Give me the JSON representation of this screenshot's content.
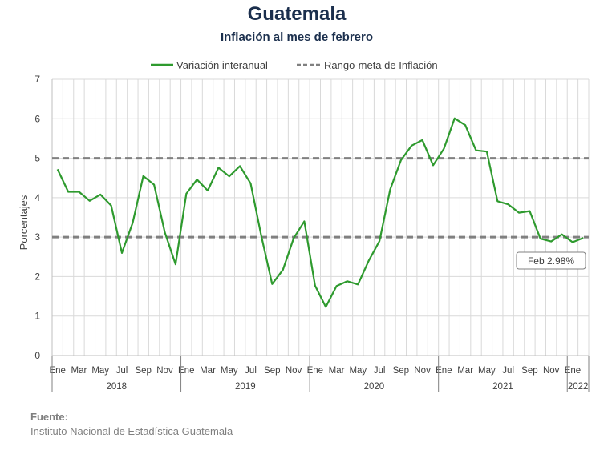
{
  "header": {
    "title": "Guatemala",
    "subtitle": "Inflación al mes de febrero"
  },
  "legend": {
    "series_label": "Variación interanual",
    "band_label": "Rango-meta de Inflación"
  },
  "chart_data": {
    "type": "line",
    "ylabel": "Porcentajes",
    "xlabel": "",
    "ylim": [
      0,
      7
    ],
    "yticks": [
      0,
      1,
      2,
      3,
      4,
      5,
      6,
      7
    ],
    "grid": true,
    "legend_position": "top",
    "month_tick_labels": [
      "Ene",
      "",
      "Mar",
      "",
      "May",
      "",
      "Jul",
      "",
      "Sep",
      "",
      "Nov",
      "",
      "Ene",
      "",
      "Mar",
      "",
      "May",
      "",
      "Jul",
      "",
      "Sep",
      "",
      "Nov",
      "",
      "Ene",
      "",
      "Mar",
      "",
      "May",
      "",
      "Jul",
      "",
      "Sep",
      "",
      "Nov",
      "",
      "Ene",
      "",
      "Mar",
      "",
      "May",
      "",
      "Jul",
      "",
      "Sep",
      "",
      "Nov",
      "",
      "Ene",
      ""
    ],
    "years": [
      {
        "label": "2018",
        "months": 12
      },
      {
        "label": "2019",
        "months": 12
      },
      {
        "label": "2020",
        "months": 12
      },
      {
        "label": "2021",
        "months": 12
      },
      {
        "label": "2022",
        "months": 2
      }
    ],
    "series": [
      {
        "name": "Variación interanual",
        "color": "#2e9a2e",
        "values": [
          4.72,
          4.15,
          4.15,
          3.92,
          4.08,
          3.8,
          2.6,
          3.36,
          4.55,
          4.33,
          3.12,
          2.31,
          4.1,
          4.46,
          4.18,
          4.76,
          4.54,
          4.8,
          4.36,
          3.02,
          1.81,
          2.17,
          2.97,
          3.4,
          1.77,
          1.23,
          1.76,
          1.88,
          1.8,
          2.4,
          2.9,
          4.21,
          4.95,
          5.32,
          5.46,
          4.82,
          5.24,
          6.01,
          5.84,
          5.2,
          5.17,
          3.91,
          3.83,
          3.62,
          3.66,
          2.96,
          2.89,
          3.07,
          2.87,
          2.98
        ]
      },
      {
        "name": "Rango-meta de Inflación",
        "color": "#808080",
        "lower": 3,
        "upper": 5
      }
    ],
    "callout": "Feb 2.98%"
  },
  "source": {
    "title": "Fuente:",
    "text": "Instituto Nacional de Estadística Guatemala"
  }
}
